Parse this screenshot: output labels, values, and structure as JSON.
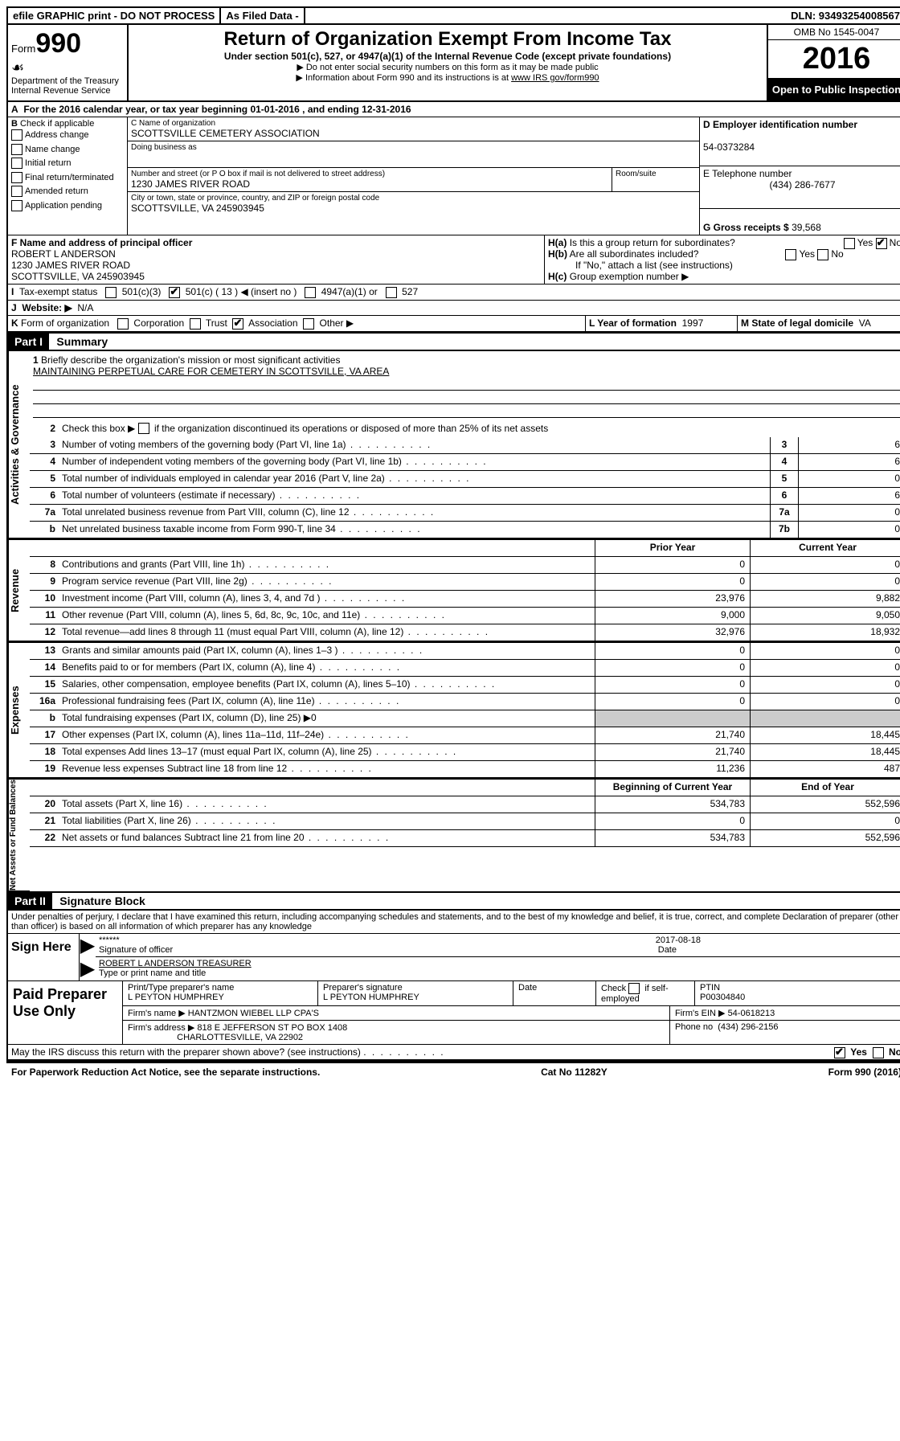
{
  "topbar": {
    "efile": "efile GRAPHIC print - DO NOT PROCESS",
    "asfiled": "As Filed Data -",
    "dln": "DLN: 93493254008567"
  },
  "header": {
    "form_label": "Form",
    "form_no": "990",
    "dept": "Department of the Treasury",
    "irs": "Internal Revenue Service",
    "title": "Return of Organization Exempt From Income Tax",
    "subtitle": "Under section 501(c), 527, or 4947(a)(1) of the Internal Revenue Code (except private foundations)",
    "note1": "▶ Do not enter social security numbers on this form as it may be made public",
    "note2_pre": "▶ Information about Form 990 and its instructions is at ",
    "note2_link": "www IRS gov/form990",
    "omb": "OMB No 1545-0047",
    "year": "2016",
    "open": "Open to Public Inspection"
  },
  "line_a": "For the 2016 calendar year, or tax year beginning 01-01-2016  , and ending 12-31-2016",
  "b": {
    "title": "Check if applicable",
    "opts": [
      "Address change",
      "Name change",
      "Initial return",
      "Final return/terminated",
      "Amended return",
      "Application pending"
    ]
  },
  "c": {
    "label": "C Name of organization",
    "name": "SCOTTSVILLE CEMETERY ASSOCIATION",
    "dba_label": "Doing business as",
    "street_label": "Number and street (or P O  box if mail is not delivered to street address)",
    "room_label": "Room/suite",
    "street": "1230 JAMES RIVER ROAD",
    "city_label": "City or town, state or province, country, and ZIP or foreign postal code",
    "city": "SCOTTSVILLE, VA  245903945"
  },
  "d": {
    "label": "D Employer identification number",
    "ein": "54-0373284"
  },
  "e": {
    "label": "E Telephone number",
    "phone": "(434) 286-7677"
  },
  "g": {
    "label": "G Gross receipts $",
    "amount": "39,568"
  },
  "f": {
    "label": "F  Name and address of principal officer",
    "name": "ROBERT L ANDERSON",
    "street": "1230 JAMES RIVER ROAD",
    "city": "SCOTTSVILLE, VA  245903945"
  },
  "h": {
    "a": "Is this a group return for subordinates?",
    "b": "Are all subordinates included?",
    "ifno": "If \"No,\" attach a list (see instructions)",
    "c": "Group exemption number ▶"
  },
  "i": {
    "label": "Tax-exempt status",
    "insert": "( 13 ) ◀ (insert no )"
  },
  "j": {
    "label": "Website: ▶",
    "val": "N/A"
  },
  "k": {
    "label": "Form of organization"
  },
  "l": {
    "label": "L Year of formation",
    "val": "1997"
  },
  "m": {
    "label": "M State of legal domicile",
    "val": "VA"
  },
  "part1": {
    "header": "Part I",
    "title": "Summary",
    "briefly_label": "Briefly describe the organization's mission or most significant activities",
    "mission": "MAINTAINING PERPETUAL CARE FOR CEMETERY IN SCOTTSVILLE, VA AREA",
    "line2": "Check this box ▶",
    "line2b": "if the organization discontinued its operations or disposed of more than 25% of its net assets",
    "lines_gov": [
      {
        "n": "3",
        "d": "Number of voting members of the governing body (Part VI, line 1a)",
        "box": "3",
        "v": "6"
      },
      {
        "n": "4",
        "d": "Number of independent voting members of the governing body (Part VI, line 1b)",
        "box": "4",
        "v": "6"
      },
      {
        "n": "5",
        "d": "Total number of individuals employed in calendar year 2016 (Part V, line 2a)",
        "box": "5",
        "v": "0"
      },
      {
        "n": "6",
        "d": "Total number of volunteers (estimate if necessary)",
        "box": "6",
        "v": "6"
      },
      {
        "n": "7a",
        "d": "Total unrelated business revenue from Part VIII, column (C), line 12",
        "box": "7a",
        "v": "0"
      },
      {
        "n": "b",
        "d": "Net unrelated business taxable income from Form 990-T, line 34",
        "box": "7b",
        "v": "0"
      }
    ],
    "col_headers": {
      "prior": "Prior Year",
      "curr": "Current Year"
    },
    "revenue": [
      {
        "n": "8",
        "d": "Contributions and grants (Part VIII, line 1h)",
        "p": "0",
        "c": "0"
      },
      {
        "n": "9",
        "d": "Program service revenue (Part VIII, line 2g)",
        "p": "0",
        "c": "0"
      },
      {
        "n": "10",
        "d": "Investment income (Part VIII, column (A), lines 3, 4, and 7d )",
        "p": "23,976",
        "c": "9,882"
      },
      {
        "n": "11",
        "d": "Other revenue (Part VIII, column (A), lines 5, 6d, 8c, 9c, 10c, and 11e)",
        "p": "9,000",
        "c": "9,050"
      },
      {
        "n": "12",
        "d": "Total revenue—add lines 8 through 11 (must equal Part VIII, column (A), line 12)",
        "p": "32,976",
        "c": "18,932"
      }
    ],
    "expenses": [
      {
        "n": "13",
        "d": "Grants and similar amounts paid (Part IX, column (A), lines 1–3 )",
        "p": "0",
        "c": "0"
      },
      {
        "n": "14",
        "d": "Benefits paid to or for members (Part IX, column (A), line 4)",
        "p": "0",
        "c": "0"
      },
      {
        "n": "15",
        "d": "Salaries, other compensation, employee benefits (Part IX, column (A), lines 5–10)",
        "p": "0",
        "c": "0"
      },
      {
        "n": "16a",
        "d": "Professional fundraising fees (Part IX, column (A), line 11e)",
        "p": "0",
        "c": "0"
      },
      {
        "n": "b",
        "d": "Total fundraising expenses (Part IX, column (D), line 25) ▶0",
        "p": "",
        "c": "",
        "gray": true
      },
      {
        "n": "17",
        "d": "Other expenses (Part IX, column (A), lines 11a–11d, 11f–24e)",
        "p": "21,740",
        "c": "18,445"
      },
      {
        "n": "18",
        "d": "Total expenses  Add lines 13–17 (must equal Part IX, column (A), line 25)",
        "p": "21,740",
        "c": "18,445"
      },
      {
        "n": "19",
        "d": "Revenue less expenses  Subtract line 18 from line 12",
        "p": "11,236",
        "c": "487"
      }
    ],
    "net_headers": {
      "begin": "Beginning of Current Year",
      "end": "End of Year"
    },
    "net": [
      {
        "n": "20",
        "d": "Total assets (Part X, line 16)",
        "p": "534,783",
        "c": "552,596"
      },
      {
        "n": "21",
        "d": "Total liabilities (Part X, line 26)",
        "p": "0",
        "c": "0"
      },
      {
        "n": "22",
        "d": "Net assets or fund balances  Subtract line 21 from line 20",
        "p": "534,783",
        "c": "552,596"
      }
    ]
  },
  "part2": {
    "header": "Part II",
    "title": "Signature Block",
    "perjury": "Under penalties of perjury, I declare that I have examined this return, including accompanying schedules and statements, and to the best of my knowledge and belief, it is true, correct, and complete  Declaration of preparer (other than officer) is based on all information of which preparer has any knowledge",
    "sign_here": "Sign Here",
    "sig_stars": "******",
    "sig_officer_label": "Signature of officer",
    "sig_date": "2017-08-18",
    "date_label": "Date",
    "officer_name": "ROBERT L ANDERSON TREASURER",
    "type_label": "Type or print name and title",
    "paid": "Paid Preparer Use Only",
    "prep_name_label": "Print/Type preparer's name",
    "prep_name": "L PEYTON HUMPHREY",
    "prep_sig_label": "Preparer's signature",
    "prep_sig": "L PEYTON HUMPHREY",
    "check_if": "Check",
    "self_emp": "if self-employed",
    "ptin_label": "PTIN",
    "ptin": "P00304840",
    "firm_name_label": "Firm's name    ▶",
    "firm_name": "HANTZMON WIEBEL LLP CPA'S",
    "firm_ein_label": "Firm's EIN ▶",
    "firm_ein": "54-0618213",
    "firm_addr_label": "Firm's address ▶",
    "firm_addr1": "818 E JEFFERSON ST PO BOX 1408",
    "firm_addr2": "CHARLOTTESVILLE, VA  22902",
    "phone_label": "Phone no",
    "phone": "(434) 296-2156",
    "discuss": "May the IRS discuss this return with the preparer shown above? (see instructions)"
  },
  "footer": {
    "pra": "For Paperwork Reduction Act Notice, see the separate instructions.",
    "cat": "Cat  No  11282Y",
    "form": "Form 990 (2016)"
  }
}
